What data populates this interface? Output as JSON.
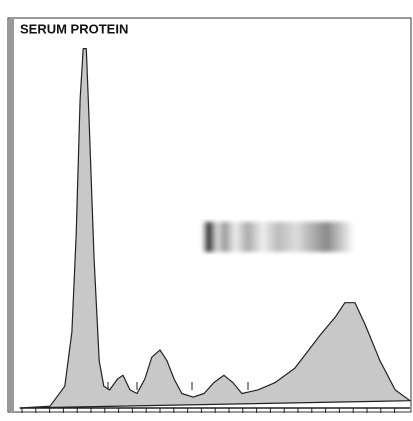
{
  "chart_data": {
    "type": "area",
    "title": "SERUM PROTEIN",
    "color": "#c8c8c8",
    "x": [
      0,
      7.7,
      11.5,
      13.3,
      14.4,
      15.4,
      16.2,
      17,
      17.7,
      19,
      20.3,
      21.5,
      23,
      25,
      26.4,
      28.2,
      30,
      32,
      33.8,
      35.9,
      37.7,
      39.5,
      41.5,
      44.4,
      47.2,
      49.7,
      52.3,
      54.6,
      56.9,
      61,
      65.4,
      70.5,
      76.9,
      80.8,
      83.3,
      85.9,
      88.5,
      92.3,
      96.2,
      100
    ],
    "values": [
      0,
      0.5,
      6,
      21,
      48,
      85,
      99,
      99,
      80,
      41,
      13,
      6,
      5,
      8,
      9,
      5,
      4,
      8,
      14,
      16,
      13,
      8,
      4,
      3,
      4,
      7,
      9,
      7,
      4,
      5,
      7,
      11,
      20,
      25,
      29,
      29,
      23,
      13,
      5,
      2
    ],
    "xlim": [
      0,
      100
    ],
    "ylim": [
      0,
      100
    ]
  }
}
